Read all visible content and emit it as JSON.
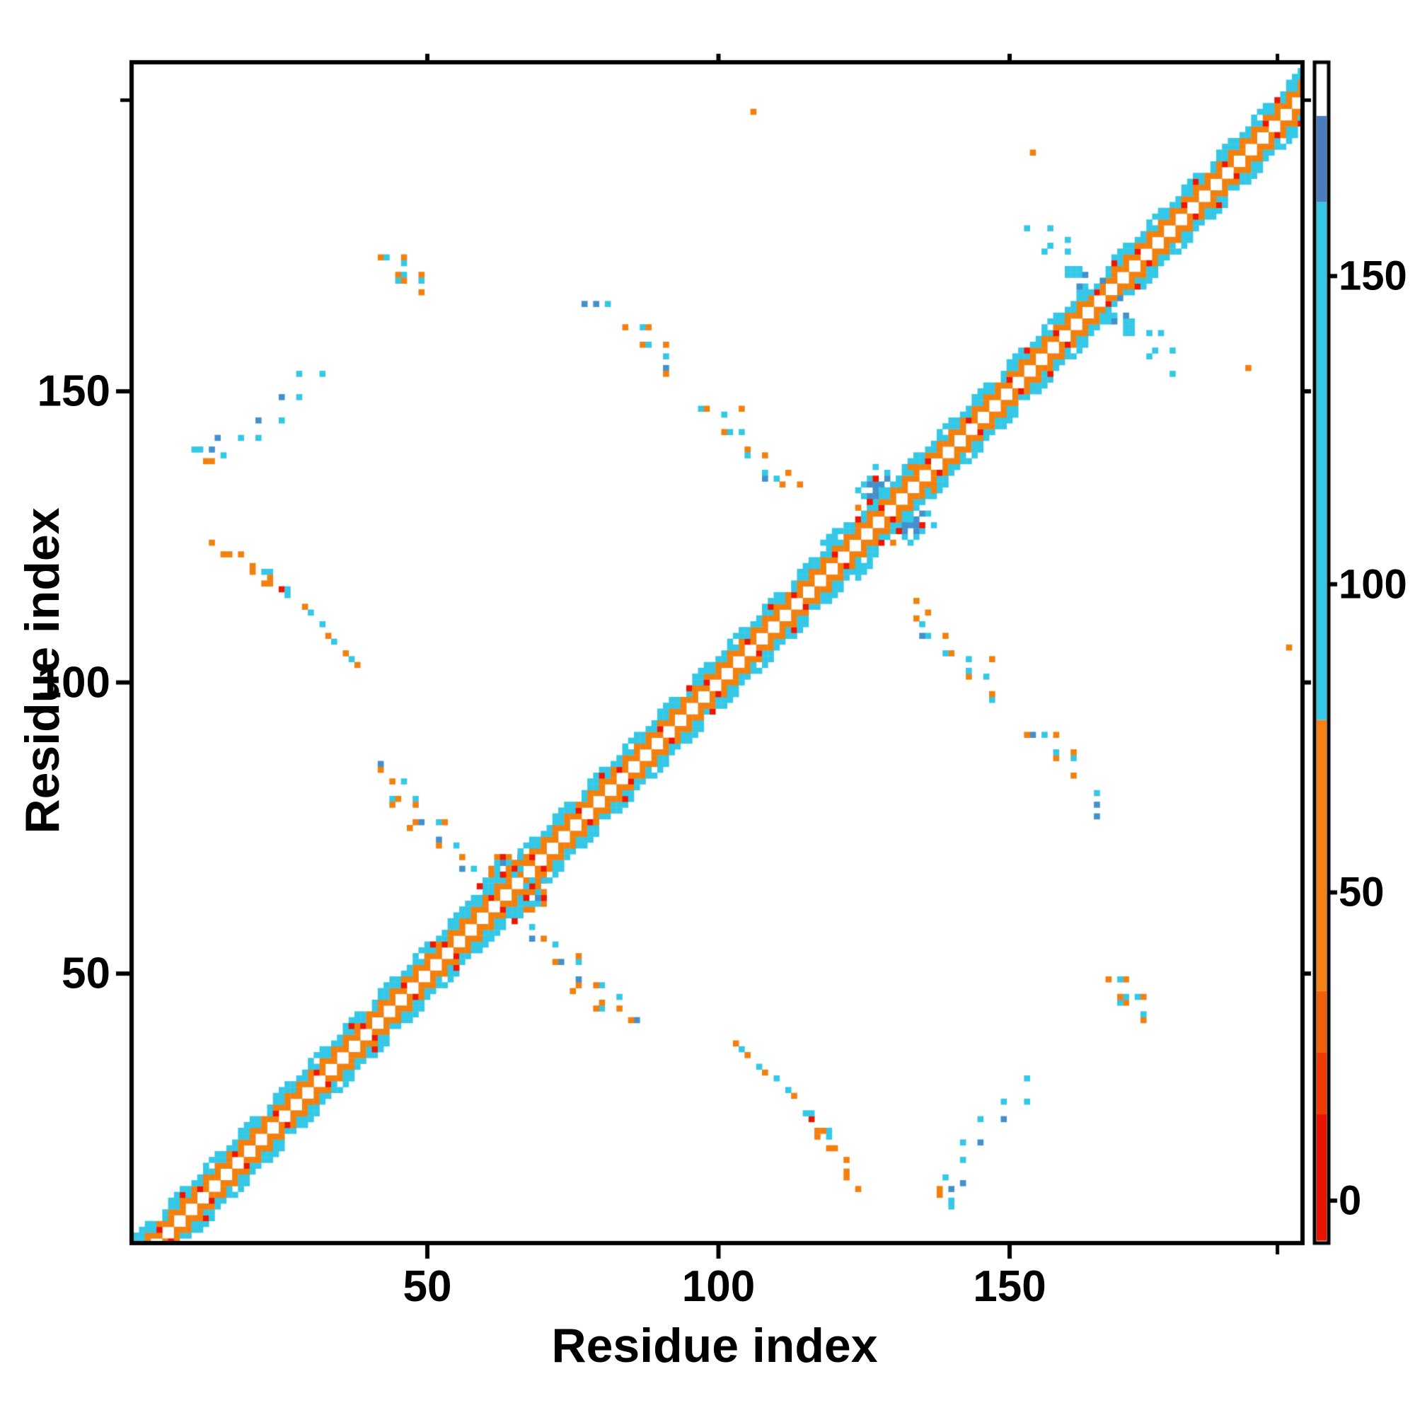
{
  "figure": {
    "xlabel": "Residue index",
    "ylabel": "Residue index"
  },
  "chart_data": {
    "type": "heatmap",
    "title": "",
    "xlabel": "Residue index",
    "ylabel": "Residue index",
    "x_ticks": [
      50,
      100,
      150
    ],
    "y_ticks": [
      50,
      100,
      150
    ],
    "x_end_tick": 196,
    "y_end_tick": 200,
    "x_range": [
      0,
      200
    ],
    "y_range": [
      0,
      206
    ],
    "grid": false,
    "legend_position": "right-colorbar",
    "cell_colors": {
      "r": "#ee1500",
      "o": "#f2800f",
      "c": "#35c8e6",
      "b": "#4490cc"
    },
    "colorbar": {
      "range": [
        -6.5,
        184.3
      ],
      "ticks": [
        0,
        50,
        100,
        150
      ],
      "segments": [
        {
          "from": -6.5,
          "to": 14,
          "color": "#e81300"
        },
        {
          "from": 14,
          "to": 24,
          "color": "#f13a00"
        },
        {
          "from": 24,
          "to": 34,
          "color": "#f35f08"
        },
        {
          "from": 34,
          "to": 78,
          "color": "#f58014"
        },
        {
          "from": 78,
          "to": 162,
          "color": "#35c8e6"
        },
        {
          "from": 162,
          "to": 176,
          "color": "#4a7cc0"
        },
        {
          "from": 176,
          "to": 184.3,
          "color": "#ffffff"
        }
      ]
    },
    "symmetric": true,
    "n_residues": 207,
    "band": {
      "description": "near-diagonal contact band, offsets 1-5, woven checker of orange/cyan with red sprinkles, white main diagonal",
      "red_offset2": [
        4,
        11,
        17,
        24,
        31,
        39,
        46,
        53,
        61,
        68,
        76,
        83,
        90,
        98,
        105,
        113,
        120,
        128,
        136,
        143,
        150,
        158,
        165,
        172,
        180,
        187,
        194
      ],
      "red_offset4": [
        8,
        22,
        37,
        51,
        66,
        80,
        95,
        109,
        124,
        139,
        153,
        168,
        182,
        196
      ],
      "gaps": [
        164,
        165,
        166
      ]
    },
    "clusters": [
      {
        "name": "hairpin-44-172",
        "cells": [
          [
            42,
            173,
            "o"
          ],
          [
            43,
            173,
            "c"
          ],
          [
            46,
            173,
            "o"
          ],
          [
            46,
            172,
            "c"
          ],
          [
            45,
            170,
            "o"
          ],
          [
            46,
            170,
            "c"
          ],
          [
            45,
            169,
            "c"
          ],
          [
            46,
            169,
            "o"
          ],
          [
            49,
            170,
            "o"
          ],
          [
            49,
            169,
            "c"
          ],
          [
            49,
            167,
            "o"
          ]
        ]
      },
      {
        "name": "parallel-strand-10-32",
        "cells": [
          [
            10,
            140,
            "c"
          ],
          [
            11,
            140,
            "c"
          ],
          [
            13,
            140,
            "b"
          ],
          [
            12,
            138,
            "o"
          ],
          [
            13,
            138,
            "o"
          ],
          [
            15,
            139,
            "c"
          ],
          [
            14,
            142,
            "b"
          ],
          [
            18,
            142,
            "c"
          ],
          [
            21,
            142,
            "c"
          ],
          [
            21,
            145,
            "b"
          ],
          [
            25,
            145,
            "c"
          ],
          [
            25,
            149,
            "b"
          ],
          [
            28,
            149,
            "c"
          ],
          [
            28,
            153,
            "c"
          ],
          [
            32,
            153,
            "c"
          ]
        ]
      },
      {
        "name": "antiparallel-13-38",
        "cells": [
          [
            13,
            124,
            "o"
          ],
          [
            15,
            122,
            "o"
          ],
          [
            16,
            122,
            "o"
          ],
          [
            18,
            122,
            "o"
          ],
          [
            20,
            120,
            "o"
          ],
          [
            20,
            119,
            "o"
          ],
          [
            22,
            119,
            "c"
          ],
          [
            23,
            119,
            "c"
          ],
          [
            23,
            118,
            "o"
          ],
          [
            22,
            117,
            "o"
          ],
          [
            23,
            117,
            "o"
          ],
          [
            25,
            116,
            "r"
          ],
          [
            26,
            116,
            "c"
          ],
          [
            26,
            115,
            "c"
          ],
          [
            29,
            113,
            "o"
          ],
          [
            30,
            112,
            "c"
          ],
          [
            32,
            110,
            "c"
          ],
          [
            33,
            108,
            "o"
          ],
          [
            34,
            107,
            "c"
          ],
          [
            36,
            105,
            "o"
          ],
          [
            37,
            104,
            "c"
          ],
          [
            38,
            103,
            "o"
          ]
        ]
      },
      {
        "name": "interdomain-arc-77-114",
        "cells": [
          [
            77,
            165,
            "b"
          ],
          [
            79,
            165,
            "b"
          ],
          [
            81,
            165,
            "c"
          ],
          [
            84,
            161,
            "o"
          ],
          [
            87,
            161,
            "c"
          ],
          [
            88,
            161,
            "o"
          ],
          [
            87,
            158,
            "o"
          ],
          [
            88,
            158,
            "c"
          ],
          [
            91,
            158,
            "o"
          ],
          [
            91,
            156,
            "c"
          ],
          [
            91,
            154,
            "b"
          ],
          [
            91,
            153,
            "o"
          ],
          [
            97,
            147,
            "c"
          ],
          [
            98,
            147,
            "o"
          ],
          [
            101,
            146,
            "c"
          ],
          [
            104,
            147,
            "o"
          ],
          [
            101,
            143,
            "o"
          ],
          [
            102,
            143,
            "c"
          ],
          [
            104,
            143,
            "c"
          ],
          [
            105,
            140,
            "o"
          ],
          [
            105,
            139,
            "c"
          ],
          [
            108,
            139,
            "o"
          ],
          [
            108,
            136,
            "c"
          ],
          [
            108,
            135,
            "b"
          ],
          [
            112,
            136,
            "o"
          ],
          [
            111,
            134,
            "o"
          ],
          [
            114,
            134,
            "o"
          ],
          [
            110,
            135,
            "c"
          ]
        ]
      },
      {
        "name": "x-arm-42-58",
        "cells": [
          [
            42,
            86,
            "b"
          ],
          [
            42,
            85,
            "o"
          ],
          [
            44,
            83,
            "o"
          ],
          [
            46,
            83,
            "c"
          ],
          [
            44,
            80,
            "c"
          ],
          [
            45,
            80,
            "o"
          ],
          [
            44,
            79,
            "o"
          ],
          [
            48,
            80,
            "c"
          ],
          [
            48,
            79,
            "o"
          ],
          [
            48,
            76,
            "o"
          ],
          [
            49,
            76,
            "b"
          ],
          [
            47,
            75,
            "o"
          ],
          [
            52,
            76,
            "c"
          ],
          [
            53,
            76,
            "o"
          ],
          [
            52,
            73,
            "b"
          ],
          [
            52,
            72,
            "o"
          ],
          [
            56,
            70,
            "o"
          ],
          [
            56,
            68,
            "b"
          ],
          [
            55,
            72,
            "c"
          ],
          [
            58,
            68,
            "c"
          ]
        ]
      },
      {
        "name": "central-blob-61-70",
        "cells": [
          [
            62,
            70,
            "o"
          ],
          [
            63,
            70,
            "r"
          ],
          [
            64,
            70,
            "o"
          ],
          [
            62,
            69,
            "c"
          ],
          [
            63,
            69,
            "b"
          ],
          [
            64,
            69,
            "c"
          ],
          [
            65,
            69,
            "o"
          ],
          [
            61,
            68,
            "o"
          ],
          [
            62,
            68,
            "c"
          ],
          [
            64,
            68,
            "o"
          ],
          [
            65,
            68,
            "r"
          ],
          [
            66,
            68,
            "c"
          ],
          [
            61,
            67,
            "o"
          ],
          [
            63,
            67,
            "r"
          ],
          [
            65,
            67,
            "c"
          ],
          [
            57,
            62,
            "c"
          ],
          [
            58,
            63,
            "c"
          ],
          [
            58,
            62,
            "c"
          ],
          [
            56,
            61,
            "c"
          ],
          [
            60,
            66,
            "c"
          ],
          [
            66,
            70,
            "c"
          ],
          [
            67,
            70,
            "o"
          ],
          [
            59,
            65,
            "r"
          ]
        ]
      },
      {
        "name": "blue-blob-124-137",
        "cells": [
          [
            124,
            133,
            "c"
          ],
          [
            125,
            134,
            "c"
          ],
          [
            126,
            135,
            "c"
          ],
          [
            126,
            134,
            "b"
          ],
          [
            127,
            134,
            "b"
          ],
          [
            128,
            134,
            "b"
          ],
          [
            127,
            133,
            "b"
          ],
          [
            128,
            133,
            "c"
          ],
          [
            125,
            132,
            "c"
          ],
          [
            126,
            132,
            "b"
          ],
          [
            127,
            132,
            "b"
          ],
          [
            129,
            136,
            "c"
          ],
          [
            127,
            137,
            "c"
          ],
          [
            133,
            137,
            "o"
          ],
          [
            129,
            135,
            "b"
          ],
          [
            130,
            134,
            "c"
          ],
          [
            131,
            135,
            "c"
          ],
          [
            126,
            131,
            "r"
          ],
          [
            124,
            130,
            "o"
          ],
          [
            118,
            124,
            "c"
          ],
          [
            119,
            125,
            "c"
          ],
          [
            120,
            126,
            "c"
          ],
          [
            119,
            124,
            "c"
          ],
          [
            127,
            135,
            "r"
          ]
        ]
      },
      {
        "name": "hairpin-153-170",
        "cells": [
          [
            153,
            178,
            "c"
          ],
          [
            157,
            178,
            "c"
          ],
          [
            156,
            174,
            "c"
          ],
          [
            157,
            175,
            "c"
          ],
          [
            160,
            174,
            "c"
          ],
          [
            160,
            176,
            "c"
          ],
          [
            160,
            171,
            "c"
          ],
          [
            161,
            171,
            "c"
          ],
          [
            160,
            170,
            "c"
          ],
          [
            161,
            170,
            "c"
          ],
          [
            162,
            170,
            "c"
          ],
          [
            163,
            170,
            "b"
          ],
          [
            162,
            171,
            "c"
          ],
          [
            163,
            167,
            "c"
          ],
          [
            164,
            167,
            "c"
          ],
          [
            165,
            168,
            "c"
          ],
          [
            162,
            168,
            "b"
          ],
          [
            166,
            169,
            "b"
          ],
          [
            170,
            175,
            "c"
          ]
        ]
      },
      {
        "name": "isolated-dots",
        "cells": [
          [
            106,
            198,
            "o"
          ],
          [
            154,
            191,
            "o"
          ]
        ]
      }
    ]
  }
}
